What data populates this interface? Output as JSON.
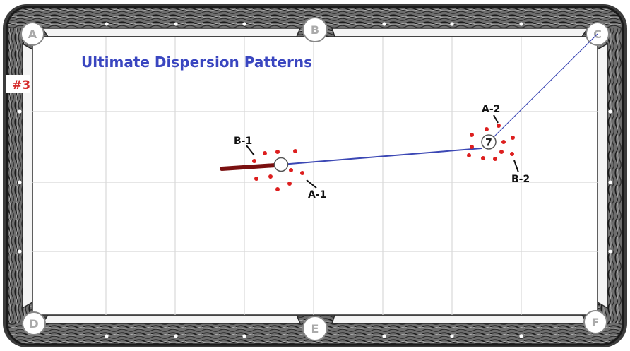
{
  "title": "Ultimate Dispersion Patterns",
  "diagram_number": "#3",
  "pockets": [
    {
      "id": "pocket-a",
      "label": "A"
    },
    {
      "id": "pocket-b",
      "label": "B"
    },
    {
      "id": "pocket-c",
      "label": "C"
    },
    {
      "id": "pocket-d",
      "label": "D"
    },
    {
      "id": "pocket-e",
      "label": "E"
    },
    {
      "id": "pocket-f",
      "label": "F"
    }
  ],
  "object_ball": {
    "number": "7"
  },
  "pattern_labels": {
    "b1": "B-1",
    "a1": "A-1",
    "a2": "A-2",
    "b2": "B-2"
  },
  "colors": {
    "felt": "#ffffff",
    "grid": "#d8d8d8",
    "rail_dark": "#3c3c3c",
    "cue_stick": "#7a1010",
    "shot_line": "#3b47b4",
    "dots": "#dd1f1f",
    "title": "#3a46c0",
    "number_label": "#d42a2a"
  }
}
